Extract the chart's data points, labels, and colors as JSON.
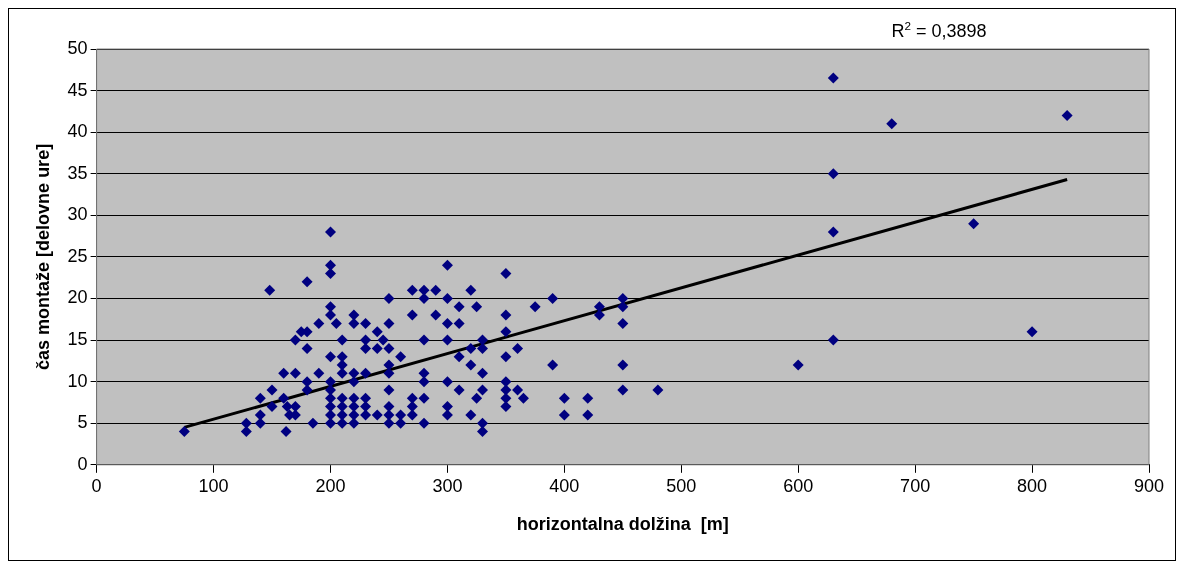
{
  "chart_data": {
    "type": "scatter",
    "xlabel": "horizontalna dolžina  [m]",
    "ylabel": "čas montaže [delovne ure]",
    "annotations": [
      "R$^{2}$ = 0,3898"
    ],
    "xlim": [
      0,
      900
    ],
    "xticks": [
      0,
      100,
      200,
      300,
      400,
      500,
      600,
      700,
      800,
      900
    ],
    "ylim": [
      0,
      50
    ],
    "yticks": [
      0,
      5,
      10,
      15,
      20,
      25,
      30,
      35,
      40,
      45,
      50
    ],
    "grid": "y",
    "legend": false,
    "series": [
      {
        "type": "scatter",
        "marker": "diamond",
        "color": "#000080",
        "x": [
          75,
          128,
          128,
          140,
          140,
          140,
          148,
          150,
          150,
          160,
          160,
          162,
          163,
          165,
          170,
          170,
          170,
          170,
          175,
          180,
          180,
          180,
          180,
          180,
          185,
          190,
          190,
          200,
          200,
          200,
          200,
          200,
          200,
          200,
          200,
          200,
          200,
          200,
          200,
          205,
          210,
          210,
          210,
          210,
          210,
          210,
          210,
          210,
          220,
          220,
          220,
          220,
          220,
          220,
          220,
          220,
          230,
          230,
          230,
          230,
          230,
          230,
          230,
          240,
          240,
          240,
          245,
          250,
          250,
          250,
          250,
          250,
          250,
          250,
          250,
          250,
          260,
          260,
          260,
          270,
          270,
          270,
          270,
          270,
          280,
          280,
          280,
          280,
          280,
          280,
          280,
          290,
          290,
          300,
          300,
          300,
          300,
          300,
          300,
          300,
          310,
          310,
          310,
          310,
          320,
          320,
          320,
          320,
          325,
          325,
          330,
          330,
          330,
          330,
          330,
          330,
          350,
          350,
          350,
          350,
          350,
          350,
          350,
          350,
          360,
          360,
          365,
          375,
          390,
          390,
          400,
          400,
          420,
          420,
          430,
          430,
          450,
          450,
          450,
          450,
          450,
          480,
          600,
          630,
          630,
          630,
          630,
          680,
          750,
          800,
          830
        ],
        "values": [
          4,
          5,
          4,
          8,
          5,
          6,
          21,
          7,
          9,
          11,
          8,
          4,
          7,
          6,
          15,
          11,
          7,
          6,
          16,
          22,
          16,
          14,
          10,
          9,
          5,
          17,
          11,
          28,
          24,
          23,
          19,
          18,
          13,
          10,
          9,
          8,
          7,
          6,
          5,
          17,
          15,
          13,
          12,
          11,
          8,
          7,
          6,
          5,
          18,
          17,
          11,
          10,
          8,
          7,
          6,
          5,
          17,
          15,
          14,
          11,
          8,
          7,
          6,
          16,
          14,
          6,
          15,
          20,
          17,
          14,
          12,
          11,
          9,
          7,
          6,
          5,
          13,
          6,
          5,
          21,
          18,
          8,
          7,
          6,
          21,
          20,
          15,
          11,
          10,
          8,
          5,
          21,
          18,
          24,
          20,
          17,
          15,
          10,
          7,
          6,
          19,
          17,
          13,
          9,
          21,
          14,
          12,
          6,
          19,
          8,
          15,
          14,
          11,
          9,
          5,
          4,
          23,
          18,
          16,
          13,
          10,
          9,
          8,
          7,
          14,
          9,
          8,
          19,
          20,
          12,
          8,
          6,
          8,
          6,
          19,
          18,
          20,
          19,
          17,
          12,
          9,
          9,
          12,
          46.5,
          35,
          28,
          15,
          41,
          29,
          16,
          42
        ]
      },
      {
        "type": "line",
        "marker": "none",
        "color": "#000000",
        "x": [
          75,
          830
        ],
        "values": [
          4.5,
          34.3
        ]
      }
    ]
  }
}
